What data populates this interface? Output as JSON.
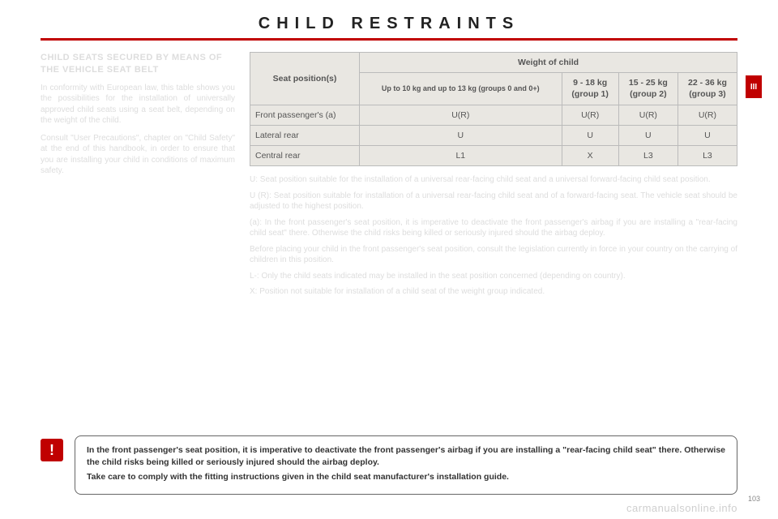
{
  "header": {
    "title": "CHILD RESTRAINTS"
  },
  "side_tab": "III",
  "left": {
    "heading": "CHILD SEATS SECURED BY MEANS OF THE VEHICLE SEAT BELT",
    "p1": "In conformity with European law, this table shows you the possibilities for the installation of universally approved child seats using a seat belt, depending on the weight of the child.",
    "p2": "Consult \"User Precautions\", chapter on \"Child Safety\" at the end of this handbook, in order to ensure that you are installing your child in conditions of maximum safety."
  },
  "table": {
    "seat_positions_label": "Seat position(s)",
    "weight_label": "Weight of child",
    "cols": [
      {
        "top": "Up to 10 kg and up to 13 kg (groups 0 and 0+)"
      },
      {
        "top": "9 - 18 kg",
        "bottom": "(group 1)"
      },
      {
        "top": "15 - 25 kg",
        "bottom": "(group 2)"
      },
      {
        "top": "22 - 36 kg",
        "bottom": "(group 3)"
      }
    ],
    "rows": [
      {
        "label": "Front passenger's (a)",
        "cells": [
          "U(R)",
          "U(R)",
          "U(R)",
          "U(R)"
        ]
      },
      {
        "label": "Lateral rear",
        "cells": [
          "U",
          "U",
          "U",
          "U"
        ]
      },
      {
        "label": "Central rear",
        "cells": [
          "L1",
          "X",
          "L3",
          "L3"
        ]
      }
    ]
  },
  "notes": {
    "u": "U: Seat position suitable for the installation of a universal rear-facing child seat and a universal forward-facing child seat position.",
    "ur": "U (R): Seat position suitable for installation of a universal rear-facing child seat and of a forward-facing seat. The vehicle seat should be adjusted to the highest position.",
    "a": "(a): In the front passenger's seat position, it is imperative to deactivate the front passenger's airbag if you are installing a \"rear-facing child seat\" there. Otherwise the child risks being killed or seriously injured should the airbag deploy.",
    "before": "Before placing your child in the front passenger's seat position, consult the legislation currently in force in your country on the carrying of children in this position.",
    "l": "L-: Only the child seats indicated may be installed in the seat position concerned (depending on country).",
    "x": "X: Position not suitable for installation of a child seat of the weight group indicated."
  },
  "warning": {
    "icon": "!",
    "p1": "In the front passenger's seat position, it is imperative to deactivate the front passenger's airbag if you are installing a \"rear-facing child seat\" there. Otherwise the child risks being killed or seriously injured should the airbag deploy.",
    "p2": "Take care to comply with the fitting instructions given in the child seat manufacturer's installation guide."
  },
  "page_number": "103",
  "watermark": "carmanualsonline.info"
}
